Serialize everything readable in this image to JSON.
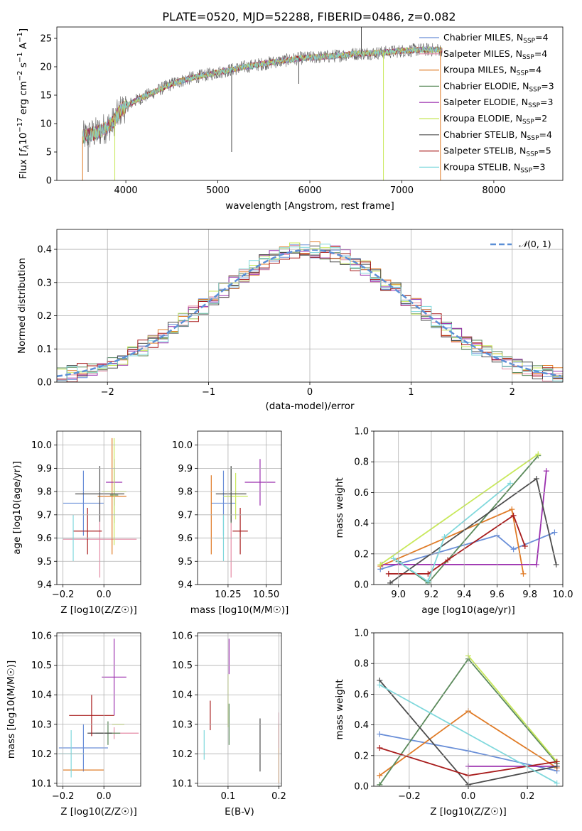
{
  "title": "PLATE=0520, MJD=52288, FIBERID=0486, z=0.082",
  "colors": {
    "chabrier_miles": "#6a8fd8",
    "salpeter_miles": "#e48aa4",
    "kroupa_miles": "#e07b26",
    "chabrier_elodie": "#5b8a5b",
    "salpeter_elodie": "#9b2fae",
    "kroupa_elodie": "#c8e85a",
    "chabrier_stelib": "#4d4d4d",
    "salpeter_stelib": "#a81c1c",
    "kroupa_stelib": "#7fd8dc",
    "normal": "#5b8fd6",
    "grid": "#b0b0b0"
  },
  "chart_data": [
    {
      "id": "spectrum",
      "type": "line",
      "title": "PLATE=0520, MJD=52288, FIBERID=0486, z=0.082",
      "xlabel": "wavelength [Angstrom, rest frame]",
      "ylabel": "Flux [f_λ 10^-17 erg cm^-2 s^-1 A^-1]",
      "xlim": [
        3250,
        8750
      ],
      "ylim": [
        0,
        27
      ],
      "xticks": [
        4000,
        5000,
        6000,
        7000,
        8000
      ],
      "yticks": [
        0,
        5,
        10,
        15,
        20,
        25
      ],
      "grid": false,
      "legend_position": "top-right",
      "legend": [
        {
          "model": "Chabrier MILES",
          "nssp": "N_SSP=4",
          "color_key": "chabrier_miles"
        },
        {
          "model": "Salpeter MILES",
          "nssp": "N_SSP=4",
          "color_key": "salpeter_miles"
        },
        {
          "model": "Kroupa MILES",
          "nssp": "N_SSP=4",
          "color_key": "kroupa_miles"
        },
        {
          "model": "Chabrier ELODIE",
          "nssp": "N_SSP=3",
          "color_key": "chabrier_elodie"
        },
        {
          "model": "Salpeter ELODIE",
          "nssp": "N_SSP=3",
          "color_key": "salpeter_elodie"
        },
        {
          "model": "Kroupa ELODIE",
          "nssp": "N_SSP=2",
          "color_key": "kroupa_elodie"
        },
        {
          "model": "Chabrier STELIB",
          "nssp": "N_SSP=4",
          "color_key": "chabrier_stelib"
        },
        {
          "model": "Salpeter STELIB",
          "nssp": "N_SSP=5",
          "color_key": "salpeter_stelib"
        },
        {
          "model": "Kroupa STELIB",
          "nssp": "N_SSP=3",
          "color_key": "kroupa_stelib"
        }
      ],
      "continuum_points": [
        [
          3500,
          7.5
        ],
        [
          3700,
          8.5
        ],
        [
          3850,
          10
        ],
        [
          3950,
          12.5
        ],
        [
          4100,
          14
        ],
        [
          4300,
          15.5
        ],
        [
          4500,
          17
        ],
        [
          4700,
          18
        ],
        [
          5000,
          19
        ],
        [
          5300,
          20
        ],
        [
          5600,
          20.8
        ],
        [
          5900,
          21.5
        ],
        [
          6200,
          21.8
        ],
        [
          6500,
          22.3
        ],
        [
          6800,
          22.5
        ],
        [
          7000,
          22.8
        ],
        [
          7200,
          23
        ],
        [
          7400,
          23
        ]
      ],
      "drops": [
        {
          "x": 3530,
          "y": 0,
          "color_key": "kroupa_miles"
        },
        {
          "x": 3590,
          "y": 1.5,
          "color_key": "chabrier_stelib"
        },
        {
          "x": 3880,
          "y": 0,
          "color_key": "kroupa_elodie"
        },
        {
          "x": 5150,
          "y": 5,
          "color_key": "chabrier_stelib"
        },
        {
          "x": 5880,
          "y": 17,
          "color_key": "chabrier_stelib"
        },
        {
          "x": 6560,
          "y": 27,
          "color_key": "chabrier_stelib"
        },
        {
          "x": 6800,
          "y": 0,
          "color_key": "kroupa_elodie"
        },
        {
          "x": 7420,
          "y": 0,
          "color_key": "kroupa_miles"
        }
      ]
    },
    {
      "id": "residuals",
      "type": "line",
      "xlabel": "(data-model)/error",
      "ylabel": "Normed distribution",
      "xlim": [
        -2.5,
        2.5
      ],
      "ylim": [
        0,
        0.46
      ],
      "xticks": [
        -2,
        -1,
        0,
        1,
        2
      ],
      "yticks": [
        0.0,
        0.1,
        0.2,
        0.3,
        0.4
      ],
      "grid": true,
      "legend_position": "top-right",
      "legend": [
        {
          "label": "N(0,1)",
          "color_key": "normal",
          "style": "dashed"
        }
      ],
      "bin_width": 0.1,
      "series_keys": [
        "chabrier_miles",
        "salpeter_miles",
        "kroupa_miles",
        "chabrier_elodie",
        "salpeter_elodie",
        "kroupa_elodie",
        "chabrier_stelib",
        "salpeter_stelib",
        "kroupa_stelib"
      ]
    },
    {
      "id": "age_vs_Z",
      "type": "scatter",
      "xlabel": "Z [log10(Z/Z☉)]",
      "ylabel": "age [log10(age/yr)]",
      "xlim": [
        -0.23,
        0.18
      ],
      "ylim": [
        9.4,
        10.06
      ],
      "xticks": [
        -0.2,
        0.0
      ],
      "yticks": [
        9.4,
        9.5,
        9.6,
        9.7,
        9.8,
        9.9,
        10.0
      ],
      "grid": true,
      "points": [
        {
          "color_key": "chabrier_miles",
          "x": -0.1,
          "xerr": 0.1,
          "y": 9.75,
          "yerr": 0.14
        },
        {
          "color_key": "salpeter_miles",
          "x": -0.02,
          "xerr": 0.18,
          "y": 9.595,
          "yerr": 0.165
        },
        {
          "color_key": "kroupa_miles",
          "x": 0.04,
          "xerr": 0.07,
          "y": 9.78,
          "yerr": 0.25
        },
        {
          "color_key": "chabrier_elodie",
          "x": 0.05,
          "xerr": 0.02,
          "y": 9.785,
          "yerr": 0.12
        },
        {
          "color_key": "salpeter_elodie",
          "x": 0.05,
          "xerr": 0.04,
          "y": 9.84,
          "yerr": 0.1
        },
        {
          "color_key": "kroupa_elodie",
          "x": 0.05,
          "xerr": 0.06,
          "y": 9.8,
          "yerr": 0.23
        },
        {
          "color_key": "chabrier_stelib",
          "x": -0.02,
          "xerr": 0.12,
          "y": 9.79,
          "yerr": 0.12
        },
        {
          "color_key": "salpeter_stelib",
          "x": -0.08,
          "xerr": 0.07,
          "y": 9.63,
          "yerr": 0.1
        },
        {
          "color_key": "kroupa_stelib",
          "x": -0.15,
          "xerr": 0.08,
          "y": 9.6,
          "yerr": 0.1
        }
      ]
    },
    {
      "id": "age_vs_mass",
      "type": "scatter",
      "xlabel": "mass [log10(M/M☉)]",
      "ylabel": "",
      "xlim": [
        10.05,
        10.6
      ],
      "ylim": [
        9.4,
        10.06
      ],
      "xticks": [
        10.25,
        10.5
      ],
      "yticks": [
        9.4,
        9.5,
        9.6,
        9.7,
        9.8,
        9.9,
        10.0
      ],
      "grid": true,
      "points": [
        {
          "color_key": "chabrier_miles",
          "x": 10.22,
          "xerr": 0.08,
          "y": 9.75,
          "yerr": 0.14
        },
        {
          "color_key": "salpeter_miles",
          "x": 10.27,
          "xerr": 0.0,
          "y": 9.595,
          "yerr": 0.165
        },
        {
          "color_key": "kroupa_miles",
          "x": 10.14,
          "xerr": 0.0,
          "y": 9.7,
          "yerr": 0.17
        },
        {
          "color_key": "chabrier_elodie",
          "x": 10.27,
          "xerr": 0.0,
          "y": 9.785,
          "yerr": 0.12
        },
        {
          "color_key": "salpeter_elodie",
          "x": 10.46,
          "xerr": 0.1,
          "y": 9.84,
          "yerr": 0.1
        },
        {
          "color_key": "kroupa_elodie",
          "x": 10.3,
          "xerr": 0.08,
          "y": 9.78,
          "yerr": 0.1
        },
        {
          "color_key": "chabrier_stelib",
          "x": 10.27,
          "xerr": 0.1,
          "y": 9.79,
          "yerr": 0.12
        },
        {
          "color_key": "salpeter_stelib",
          "x": 10.33,
          "xerr": 0.05,
          "y": 9.63,
          "yerr": 0.1
        },
        {
          "color_key": "kroupa_stelib",
          "x": 10.22,
          "xerr": 0.06,
          "y": 9.6,
          "yerr": 0.1
        }
      ]
    },
    {
      "id": "weight_vs_age",
      "type": "line",
      "xlabel": "age [log10(age/yr)]",
      "ylabel": "mass weight",
      "xlim": [
        8.85,
        10.0
      ],
      "ylim": [
        0,
        1.0
      ],
      "xticks": [
        9.0,
        9.2,
        9.4,
        9.6,
        9.8,
        10.0
      ],
      "yticks": [
        0.0,
        0.2,
        0.4,
        0.6,
        0.8,
        1.0
      ],
      "grid": true,
      "series": [
        {
          "color_key": "chabrier_miles",
          "x": [
            8.89,
            9.6,
            9.7,
            9.95
          ],
          "y": [
            0.1,
            0.32,
            0.23,
            0.34
          ]
        },
        {
          "color_key": "kroupa_miles",
          "x": [
            8.89,
            9.69,
            9.76
          ],
          "y": [
            0.12,
            0.49,
            0.07
          ]
        },
        {
          "color_key": "chabrier_elodie",
          "x": [
            9.0,
            9.18,
            9.85
          ],
          "y": [
            0.15,
            0.01,
            0.84
          ]
        },
        {
          "color_key": "salpeter_elodie",
          "x": [
            8.9,
            9.84,
            9.9
          ],
          "y": [
            0.13,
            0.13,
            0.74
          ]
        },
        {
          "color_key": "kroupa_elodie",
          "x": [
            8.89,
            9.85
          ],
          "y": [
            0.13,
            0.85
          ]
        },
        {
          "color_key": "chabrier_stelib",
          "x": [
            8.95,
            9.84,
            9.96
          ],
          "y": [
            0.01,
            0.69,
            0.13
          ]
        },
        {
          "color_key": "salpeter_stelib",
          "x": [
            8.94,
            9.18,
            9.3,
            9.7,
            9.77
          ],
          "y": [
            0.07,
            0.07,
            0.16,
            0.45,
            0.25
          ]
        },
        {
          "color_key": "kroupa_stelib",
          "x": [
            8.97,
            9.18,
            9.28,
            9.68
          ],
          "y": [
            0.17,
            0.02,
            0.31,
            0.66
          ]
        }
      ]
    },
    {
      "id": "mass_vs_Z",
      "type": "scatter",
      "xlabel": "Z [log10(Z/Z☉)]",
      "ylabel": "mass [log10(M/M☉)]",
      "xlim": [
        -0.23,
        0.18
      ],
      "ylim": [
        10.09,
        10.61
      ],
      "xticks": [
        -0.2,
        0.0
      ],
      "yticks": [
        10.1,
        10.2,
        10.3,
        10.4,
        10.5,
        10.6
      ],
      "grid": true,
      "points": [
        {
          "color_key": "chabrier_miles",
          "x": -0.1,
          "xerr": 0.12,
          "y": 10.22,
          "yerr": 0.08
        },
        {
          "color_key": "salpeter_miles",
          "x": 0.05,
          "xerr": 0.12,
          "y": 10.27,
          "yerr": 0.02
        },
        {
          "color_key": "kroupa_miles",
          "x": -0.1,
          "xerr": 0.1,
          "y": 10.145,
          "yerr": 0.0
        },
        {
          "color_key": "chabrier_elodie",
          "x": 0.02,
          "xerr": 0.06,
          "y": 10.27,
          "yerr": 0.04
        },
        {
          "color_key": "salpeter_elodie",
          "x": 0.05,
          "xerr": 0.06,
          "y": 10.46,
          "yerr": 0.13
        },
        {
          "color_key": "kroupa_elodie",
          "x": 0.07,
          "xerr": 0.03,
          "y": 10.3,
          "yerr": 0.0
        },
        {
          "color_key": "chabrier_stelib",
          "x": -0.02,
          "xerr": 0.06,
          "y": 10.27,
          "yerr": 0.0
        },
        {
          "color_key": "salpeter_stelib",
          "x": -0.06,
          "xerr": 0.11,
          "y": 10.33,
          "yerr": 0.07
        },
        {
          "color_key": "kroupa_stelib",
          "x": -0.16,
          "xerr": 0.06,
          "y": 10.2,
          "yerr": 0.08
        }
      ]
    },
    {
      "id": "mass_vs_ebv",
      "type": "scatter",
      "xlabel": "E(B-V)",
      "ylabel": "",
      "xlim": [
        0.04,
        0.205
      ],
      "ylim": [
        10.09,
        10.61
      ],
      "xticks": [
        0.1,
        0.2
      ],
      "yticks": [
        10.1,
        10.2,
        10.3,
        10.4,
        10.5,
        10.6
      ],
      "grid": true,
      "points": [
        {
          "color_key": "kroupa_stelib",
          "x": 0.053,
          "y": 10.23,
          "yerr": 0.05
        },
        {
          "color_key": "salpeter_stelib",
          "x": 0.065,
          "y": 10.33,
          "yerr": 0.05
        },
        {
          "color_key": "chabrier_elodie",
          "x": 0.102,
          "y": 10.3,
          "yerr": 0.07
        },
        {
          "color_key": "salpeter_elodie",
          "x": 0.102,
          "y": 10.53,
          "yerr": 0.06
        },
        {
          "color_key": "kroupa_elodie",
          "x": 0.1,
          "y": 10.38,
          "yerr": 0.09
        },
        {
          "color_key": "chabrier_stelib",
          "x": 0.163,
          "y": 10.23,
          "yerr": 0.09
        },
        {
          "color_key": "kroupa_miles",
          "x": 0.2,
          "y": 10.2,
          "yerr": 0.1
        },
        {
          "color_key": "salpeter_miles",
          "x": 0.2,
          "y": 10.28,
          "yerr": 0.06
        }
      ]
    },
    {
      "id": "weight_vs_Z",
      "type": "line",
      "xlabel": "Z [log10(Z/Z☉)]",
      "ylabel": "mass weight",
      "xlim": [
        -0.32,
        0.32
      ],
      "ylim": [
        0,
        1.0
      ],
      "xticks": [
        -0.2,
        0.0,
        0.2
      ],
      "yticks": [
        0.0,
        0.2,
        0.4,
        0.6,
        0.8,
        1.0
      ],
      "grid": true,
      "series": [
        {
          "color_key": "chabrier_miles",
          "x": [
            -0.3,
            0.0,
            0.3
          ],
          "y": [
            0.34,
            0.23,
            0.1
          ]
        },
        {
          "color_key": "kroupa_miles",
          "x": [
            -0.3,
            0.0,
            0.3
          ],
          "y": [
            0.07,
            0.49,
            0.12
          ]
        },
        {
          "color_key": "chabrier_elodie",
          "x": [
            -0.3,
            0.0,
            0.3
          ],
          "y": [
            0.01,
            0.83,
            0.15
          ]
        },
        {
          "color_key": "salpeter_elodie",
          "x": [
            0.0,
            0.3
          ],
          "y": [
            0.13,
            0.13
          ]
        },
        {
          "color_key": "kroupa_elodie",
          "x": [
            0.0,
            0.3
          ],
          "y": [
            0.85,
            0.16
          ]
        },
        {
          "color_key": "chabrier_stelib",
          "x": [
            -0.3,
            0.0,
            0.3
          ],
          "y": [
            0.69,
            0.01,
            0.13
          ]
        },
        {
          "color_key": "salpeter_stelib",
          "x": [
            -0.3,
            0.0,
            0.3
          ],
          "y": [
            0.25,
            0.07,
            0.16
          ]
        },
        {
          "color_key": "kroupa_stelib",
          "x": [
            -0.3,
            0.3
          ],
          "y": [
            0.66,
            0.02
          ]
        }
      ]
    }
  ]
}
